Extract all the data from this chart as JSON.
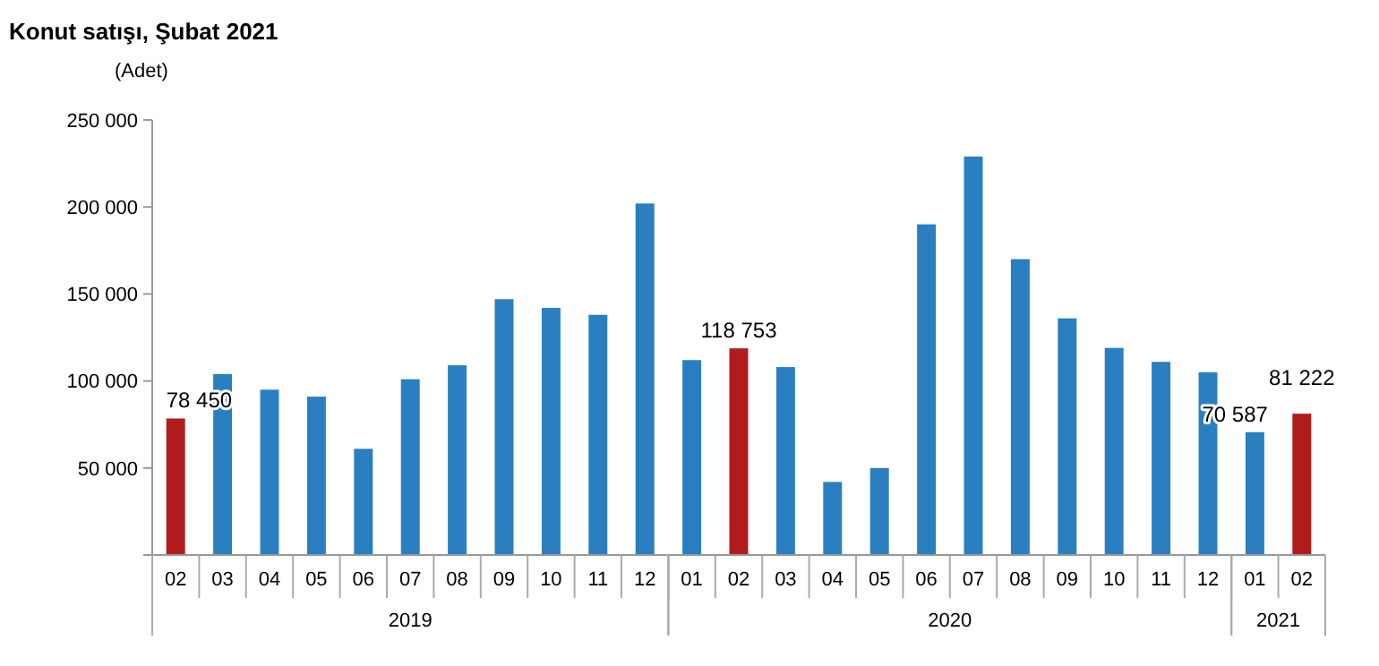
{
  "chart_data": {
    "type": "bar",
    "title": "Konut satışı, Şubat 2021",
    "ylabel": "(Adet)",
    "categories": [
      "02",
      "03",
      "04",
      "05",
      "06",
      "07",
      "08",
      "09",
      "10",
      "11",
      "12",
      "01",
      "02",
      "03",
      "04",
      "05",
      "06",
      "07",
      "08",
      "09",
      "10",
      "11",
      "12",
      "01",
      "02"
    ],
    "values": [
      78450,
      104000,
      95000,
      91000,
      61000,
      101000,
      109000,
      147000,
      142000,
      138000,
      202000,
      112000,
      118753,
      108000,
      42000,
      50000,
      190000,
      229000,
      170000,
      136000,
      119000,
      111000,
      105000,
      70587,
      81222
    ],
    "colors": [
      "#b01c1c",
      "#2a7fc1",
      "#2a7fc1",
      "#2a7fc1",
      "#2a7fc1",
      "#2a7fc1",
      "#2a7fc1",
      "#2a7fc1",
      "#2a7fc1",
      "#2a7fc1",
      "#2a7fc1",
      "#2a7fc1",
      "#b01c1c",
      "#2a7fc1",
      "#2a7fc1",
      "#2a7fc1",
      "#2a7fc1",
      "#2a7fc1",
      "#2a7fc1",
      "#2a7fc1",
      "#2a7fc1",
      "#2a7fc1",
      "#2a7fc1",
      "#2a7fc1",
      "#b01c1c"
    ],
    "value_labels": [
      "78 450",
      null,
      null,
      null,
      null,
      null,
      null,
      null,
      null,
      null,
      null,
      null,
      "118 753",
      null,
      null,
      null,
      null,
      null,
      null,
      null,
      null,
      null,
      null,
      "70 587",
      "81 222"
    ],
    "annotations": [
      "2019",
      "2020",
      "2021"
    ],
    "ylim": [
      0,
      250000
    ],
    "yticks": [
      {
        "value": 50000,
        "label": "50 000"
      },
      {
        "value": 100000,
        "label": "100 000"
      },
      {
        "value": 150000,
        "label": "150 000"
      },
      {
        "value": 200000,
        "label": "200 000"
      },
      {
        "value": 250000,
        "label": "250 000"
      }
    ],
    "grid": false
  }
}
